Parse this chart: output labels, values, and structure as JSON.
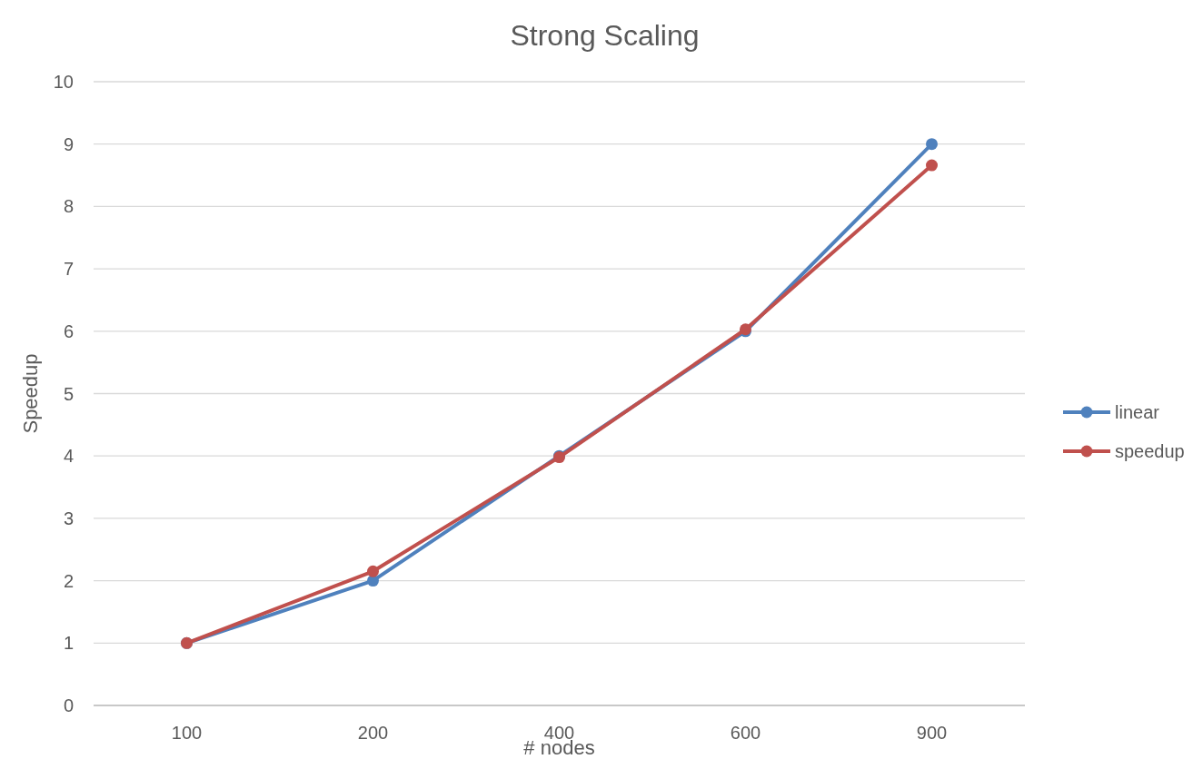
{
  "chart_data": {
    "type": "line",
    "title": "Strong Scaling",
    "xlabel": "# nodes",
    "ylabel": "Speedup",
    "categories": [
      "100",
      "200",
      "400",
      "600",
      "900"
    ],
    "series": [
      {
        "name": "linear",
        "color": "#4f81bd",
        "values": [
          1,
          2,
          4,
          6,
          9
        ]
      },
      {
        "name": "speedup",
        "color": "#c0504d",
        "values": [
          1,
          2.15,
          3.98,
          6.03,
          8.66
        ]
      }
    ],
    "ylim": [
      0,
      10
    ],
    "yticks": [
      0,
      1,
      2,
      3,
      4,
      5,
      6,
      7,
      8,
      9,
      10
    ],
    "grid": "y",
    "legend": "right",
    "marker": "circle"
  }
}
